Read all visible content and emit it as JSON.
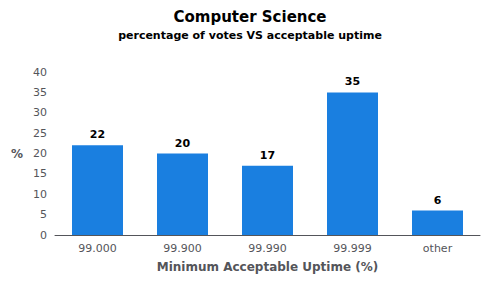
{
  "chart_data": {
    "type": "bar",
    "title": "Computer Science",
    "subtitle": "percentage of votes VS acceptable uptime",
    "xlabel": "Minimum Acceptable Uptime (%)",
    "ylabel": "%",
    "categories": [
      "99.000",
      "99.900",
      "99.990",
      "99.999",
      "other"
    ],
    "values": [
      22,
      20,
      17,
      35,
      6
    ],
    "color": "#1a7fe0",
    "ylim": [
      0,
      40
    ],
    "yticks": [
      0,
      5,
      10,
      15,
      20,
      25,
      30,
      35,
      40
    ],
    "grid": false,
    "data_labels": true
  }
}
